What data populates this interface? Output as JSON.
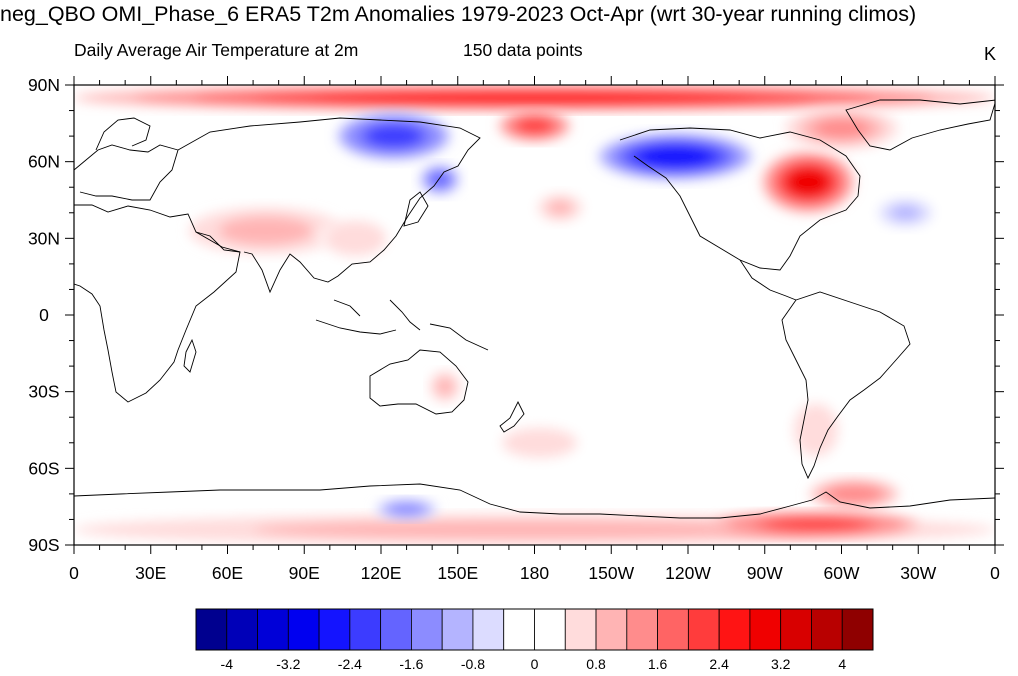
{
  "title": "neg_QBO OMI_Phase_6 ERA5 T2m Anomalies 1979-2023 Oct-Apr (wrt 30-year running climos)",
  "subtitle_left": "Daily Average Air Temperature at 2m",
  "subtitle_center": "150 data points",
  "units": "K",
  "axes": {
    "x_ticks": [
      "0",
      "30E",
      "60E",
      "90E",
      "120E",
      "150E",
      "180",
      "150W",
      "120W",
      "90W",
      "60W",
      "30W",
      "0"
    ],
    "y_ticks": [
      "90N",
      "60N",
      "30N",
      "0",
      "30S",
      "60S",
      "90S"
    ]
  },
  "colorbar": {
    "labels": [
      "-4",
      "-3.2",
      "-2.4",
      "-1.6",
      "-0.8",
      "0",
      "0.8",
      "1.6",
      "2.4",
      "3.2",
      "4"
    ],
    "colors": [
      "#00008f",
      "#0000b8",
      "#0000d8",
      "#0000f0",
      "#1414ff",
      "#3c3cff",
      "#6464ff",
      "#8c8cff",
      "#b4b4ff",
      "#dcdcff",
      "#ffffff",
      "#ffffff",
      "#ffdcdc",
      "#ffb4b4",
      "#ff8c8c",
      "#ff6464",
      "#ff3c3c",
      "#ff1414",
      "#f00000",
      "#d80000",
      "#b80000",
      "#8f0000"
    ]
  },
  "chart_data": {
    "type": "heatmap",
    "projection": "cylindrical-equidistant",
    "xlim": [
      0,
      360
    ],
    "ylim": [
      -90,
      90
    ],
    "variable": "T2m anomaly",
    "anomalies": [
      {
        "name": "arctic-band",
        "lon": 180,
        "lat": 85,
        "dlon": 180,
        "dlat": 5,
        "value": 2.6
      },
      {
        "name": "antarctic-band",
        "lon": 180,
        "lat": -84,
        "dlon": 180,
        "dlat": 6,
        "value": 1.0
      },
      {
        "name": "east-siberia-cold",
        "lon": 125,
        "lat": 70,
        "dlon": 22,
        "dlat": 9,
        "value": -2.2
      },
      {
        "name": "kamchatka-cold",
        "lon": 143,
        "lat": 53,
        "dlon": 8,
        "dlat": 6,
        "value": -1.8
      },
      {
        "name": "alaska-cold",
        "lon": 235,
        "lat": 62,
        "dlon": 30,
        "dlat": 9,
        "value": -2.6
      },
      {
        "name": "chukchi-warm",
        "lon": 180,
        "lat": 74,
        "dlon": 14,
        "dlat": 6,
        "value": 2.2
      },
      {
        "name": "hudson-warm",
        "lon": 287,
        "lat": 52,
        "dlon": 18,
        "dlat": 12,
        "value": 2.8
      },
      {
        "name": "greenland-warm",
        "lon": 300,
        "lat": 73,
        "dlon": 22,
        "dlat": 8,
        "value": 1.4
      },
      {
        "name": "central-asia-warm",
        "lon": 75,
        "lat": 33,
        "dlon": 30,
        "dlat": 9,
        "value": 1.0
      },
      {
        "name": "china-warm",
        "lon": 110,
        "lat": 30,
        "dlon": 14,
        "dlat": 8,
        "value": 0.8
      },
      {
        "name": "north-pacific-warm",
        "lon": 190,
        "lat": 42,
        "dlon": 10,
        "dlat": 6,
        "value": 0.9
      },
      {
        "name": "north-atlantic-cold",
        "lon": 325,
        "lat": 40,
        "dlon": 12,
        "dlat": 6,
        "value": -0.9
      },
      {
        "name": "australia-warm",
        "lon": 145,
        "lat": -28,
        "dlon": 6,
        "dlat": 6,
        "value": 1.0
      },
      {
        "name": "south-pacific-warm",
        "lon": 182,
        "lat": -50,
        "dlon": 20,
        "dlat": 8,
        "value": 0.6
      },
      {
        "name": "patagonia-warm",
        "lon": 290,
        "lat": -45,
        "dlon": 10,
        "dlat": 12,
        "value": 0.8
      },
      {
        "name": "antarctic-east-cold",
        "lon": 130,
        "lat": -76,
        "dlon": 12,
        "dlat": 4,
        "value": -1.5
      },
      {
        "name": "antarctic-peninsula-warm",
        "lon": 305,
        "lat": -70,
        "dlon": 18,
        "dlat": 6,
        "value": 1.6
      },
      {
        "name": "weddell-warm",
        "lon": 290,
        "lat": -82,
        "dlon": 40,
        "dlat": 5,
        "value": 2.2
      }
    ]
  }
}
